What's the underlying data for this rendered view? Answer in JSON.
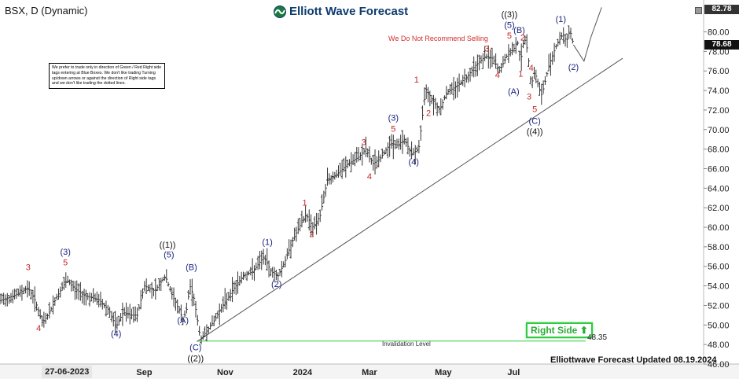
{
  "header": {
    "ticker": "BSX, D (Dynamic)",
    "brand": "Elliott Wave Forecast"
  },
  "notice": "We prefer to trade only in direction of Green / Red Right side tags entering at Blue Boxes. We don't like trading Turning up/down arrows or against the direction of Right side tags and we don't like trading the dotted lines.",
  "warning": "We Do Not Recommend Selling",
  "right_side_tag": "Right Side",
  "invalidation": {
    "label": "Invalidation Level",
    "value": "48.35"
  },
  "footer": "Elliottwave Forecast Updated 08.19.2024",
  "price_badges": {
    "top": "82.78",
    "current": "78.68"
  },
  "chart_data": {
    "type": "candlestick",
    "title": "BSX, D (Dynamic)",
    "ylim": [
      46,
      82.78
    ],
    "yticks": [
      46,
      48,
      50,
      52,
      54,
      56,
      58,
      60,
      62,
      64,
      66,
      68,
      70,
      72,
      74,
      76,
      78,
      80
    ],
    "ytick_labels": [
      "46.00",
      "48.00",
      "50.00",
      "52.00",
      "54.00",
      "56.00",
      "58.00",
      "60.00",
      "62.00",
      "64.00",
      "66.00",
      "68.00",
      "70.00",
      "72.00",
      "74.00",
      "76.00",
      "78.00",
      "80.00"
    ],
    "xticks": [
      {
        "label": "27-06-2023",
        "pos": 0.075
      },
      {
        "label": "Sep",
        "pos": 0.205
      },
      {
        "label": "Nov",
        "pos": 0.32
      },
      {
        "label": "2024",
        "pos": 0.43
      },
      {
        "label": "Mar",
        "pos": 0.525
      },
      {
        "label": "May",
        "pos": 0.63
      },
      {
        "label": "Jul",
        "pos": 0.73
      }
    ],
    "price_path": [
      [
        0.0,
        52.5
      ],
      [
        0.02,
        53.0
      ],
      [
        0.04,
        53.8
      ],
      [
        0.05,
        52.5
      ],
      [
        0.06,
        50.2
      ],
      [
        0.07,
        51.2
      ],
      [
        0.08,
        52.8
      ],
      [
        0.095,
        54.6
      ],
      [
        0.105,
        53.8
      ],
      [
        0.12,
        53.0
      ],
      [
        0.14,
        52.6
      ],
      [
        0.155,
        51.5
      ],
      [
        0.165,
        49.8
      ],
      [
        0.175,
        51.3
      ],
      [
        0.185,
        51.0
      ],
      [
        0.195,
        51.0
      ],
      [
        0.205,
        54.0
      ],
      [
        0.22,
        53.5
      ],
      [
        0.235,
        55.0
      ],
      [
        0.245,
        53.0
      ],
      [
        0.255,
        51.5
      ],
      [
        0.26,
        50.5
      ],
      [
        0.265,
        51.5
      ],
      [
        0.27,
        54.0
      ],
      [
        0.275,
        53.0
      ],
      [
        0.28,
        50.8
      ],
      [
        0.285,
        48.5
      ],
      [
        0.295,
        49.5
      ],
      [
        0.305,
        50.5
      ],
      [
        0.315,
        51.8
      ],
      [
        0.33,
        53.5
      ],
      [
        0.345,
        55.0
      ],
      [
        0.36,
        55.5
      ],
      [
        0.375,
        57.0
      ],
      [
        0.385,
        55.5
      ],
      [
        0.395,
        55.0
      ],
      [
        0.405,
        56.5
      ],
      [
        0.415,
        58.5
      ],
      [
        0.425,
        60.0
      ],
      [
        0.435,
        61.3
      ],
      [
        0.445,
        60.0
      ],
      [
        0.455,
        61.2
      ],
      [
        0.465,
        64.8
      ],
      [
        0.48,
        65.5
      ],
      [
        0.495,
        66.5
      ],
      [
        0.51,
        67.2
      ],
      [
        0.52,
        68.0
      ],
      [
        0.53,
        66.5
      ],
      [
        0.54,
        67.0
      ],
      [
        0.555,
        68.6
      ],
      [
        0.565,
        68.4
      ],
      [
        0.575,
        69.0
      ],
      [
        0.585,
        67.5
      ],
      [
        0.595,
        68.0
      ],
      [
        0.605,
        74.2
      ],
      [
        0.615,
        73.0
      ],
      [
        0.625,
        72.0
      ],
      [
        0.635,
        73.8
      ],
      [
        0.65,
        74.5
      ],
      [
        0.665,
        75.5
      ],
      [
        0.675,
        76.5
      ],
      [
        0.69,
        77.5
      ],
      [
        0.7,
        77.3
      ],
      [
        0.71,
        76.0
      ],
      [
        0.72,
        77.5
      ],
      [
        0.73,
        78.2
      ],
      [
        0.735,
        79.2
      ],
      [
        0.74,
        77.0
      ],
      [
        0.745,
        79.5
      ],
      [
        0.75,
        78.0
      ],
      [
        0.755,
        74.5
      ],
      [
        0.76,
        76.0
      ],
      [
        0.765,
        74.5
      ],
      [
        0.77,
        73.5
      ],
      [
        0.775,
        75.0
      ],
      [
        0.78,
        76.5
      ],
      [
        0.79,
        78.5
      ],
      [
        0.8,
        79.8
      ],
      [
        0.805,
        79.0
      ],
      [
        0.81,
        80.2
      ],
      [
        0.815,
        78.68
      ]
    ],
    "projection": [
      [
        0.815,
        78.68
      ],
      [
        0.83,
        77.0
      ],
      [
        0.84,
        79.5
      ],
      [
        0.855,
        82.5
      ]
    ],
    "trendline": [
      [
        0.28,
        48.3
      ],
      [
        0.885,
        77.3
      ]
    ],
    "invalidation_price": 48.35,
    "annotations": [
      {
        "text": "3",
        "x": 0.04,
        "y": 55.6,
        "color": "red"
      },
      {
        "text": "4",
        "x": 0.055,
        "y": 49.4,
        "color": "red"
      },
      {
        "text": "(3)",
        "x": 0.093,
        "y": 57.2,
        "color": "blue"
      },
      {
        "text": "5",
        "x": 0.093,
        "y": 56.1,
        "color": "red"
      },
      {
        "text": "(4)",
        "x": 0.165,
        "y": 48.8,
        "color": "blue"
      },
      {
        "text": "((1))",
        "x": 0.238,
        "y": 57.9,
        "color": "black"
      },
      {
        "text": "(5)",
        "x": 0.24,
        "y": 56.9,
        "color": "blue"
      },
      {
        "text": "(B)",
        "x": 0.272,
        "y": 55.6,
        "color": "blue"
      },
      {
        "text": "(A)",
        "x": 0.26,
        "y": 50.2,
        "color": "blue"
      },
      {
        "text": "(C)",
        "x": 0.278,
        "y": 47.4,
        "color": "blue"
      },
      {
        "text": "((2))",
        "x": 0.278,
        "y": 46.3,
        "color": "black"
      },
      {
        "text": "(1)",
        "x": 0.38,
        "y": 58.2,
        "color": "blue"
      },
      {
        "text": "(2)",
        "x": 0.393,
        "y": 53.9,
        "color": "blue"
      },
      {
        "text": "1",
        "x": 0.433,
        "y": 62.2,
        "color": "red"
      },
      {
        "text": "2",
        "x": 0.443,
        "y": 59.0,
        "color": "red"
      },
      {
        "text": "3",
        "x": 0.517,
        "y": 68.4,
        "color": "red"
      },
      {
        "text": "4",
        "x": 0.525,
        "y": 64.9,
        "color": "red"
      },
      {
        "text": "(3)",
        "x": 0.559,
        "y": 70.9,
        "color": "blue"
      },
      {
        "text": "5",
        "x": 0.559,
        "y": 69.8,
        "color": "red"
      },
      {
        "text": "(4)",
        "x": 0.588,
        "y": 66.4,
        "color": "blue"
      },
      {
        "text": "1",
        "x": 0.592,
        "y": 74.8,
        "color": "red"
      },
      {
        "text": "2",
        "x": 0.609,
        "y": 71.4,
        "color": "red"
      },
      {
        "text": "3",
        "x": 0.692,
        "y": 78.0,
        "color": "red"
      },
      {
        "text": "4",
        "x": 0.707,
        "y": 75.3,
        "color": "red"
      },
      {
        "text": "((3))",
        "x": 0.724,
        "y": 81.5,
        "color": "black"
      },
      {
        "text": "(5)",
        "x": 0.724,
        "y": 80.4,
        "color": "blue"
      },
      {
        "text": "5",
        "x": 0.724,
        "y": 79.3,
        "color": "red"
      },
      {
        "text": "(B)",
        "x": 0.738,
        "y": 79.9,
        "color": "blue"
      },
      {
        "text": "2",
        "x": 0.743,
        "y": 79.1,
        "color": "red"
      },
      {
        "text": "1",
        "x": 0.74,
        "y": 75.4,
        "color": "red"
      },
      {
        "text": "4",
        "x": 0.755,
        "y": 76.0,
        "color": "red"
      },
      {
        "text": "(A)",
        "x": 0.73,
        "y": 73.6,
        "color": "blue"
      },
      {
        "text": "3",
        "x": 0.752,
        "y": 73.1,
        "color": "red"
      },
      {
        "text": "5",
        "x": 0.76,
        "y": 71.8,
        "color": "red"
      },
      {
        "text": "(C)",
        "x": 0.76,
        "y": 70.6,
        "color": "blue"
      },
      {
        "text": "((4))",
        "x": 0.76,
        "y": 69.5,
        "color": "black"
      },
      {
        "text": "(1)",
        "x": 0.797,
        "y": 81.0,
        "color": "blue"
      },
      {
        "text": "(2)",
        "x": 0.815,
        "y": 76.1,
        "color": "blue"
      }
    ],
    "colors": {
      "bars": "#333333",
      "trendline": "#555555",
      "invalidation": "#2ecc40",
      "projection": "#555555"
    }
  }
}
